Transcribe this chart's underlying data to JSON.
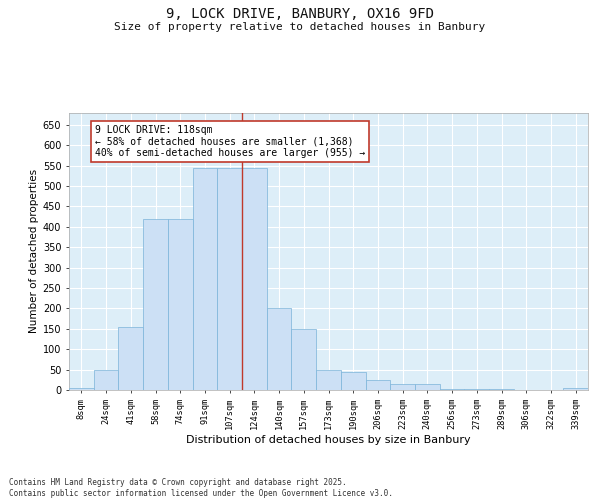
{
  "title_line1": "9, LOCK DRIVE, BANBURY, OX16 9FD",
  "title_line2": "Size of property relative to detached houses in Banbury",
  "xlabel": "Distribution of detached houses by size in Banbury",
  "ylabel": "Number of detached properties",
  "bar_color": "#cce0f5",
  "bar_edge_color": "#7ab3d9",
  "categories": [
    "8sqm",
    "24sqm",
    "41sqm",
    "58sqm",
    "74sqm",
    "91sqm",
    "107sqm",
    "124sqm",
    "140sqm",
    "157sqm",
    "173sqm",
    "190sqm",
    "206sqm",
    "223sqm",
    "240sqm",
    "256sqm",
    "273sqm",
    "289sqm",
    "306sqm",
    "322sqm",
    "339sqm"
  ],
  "values": [
    5,
    50,
    155,
    420,
    420,
    545,
    545,
    545,
    200,
    150,
    50,
    45,
    25,
    15,
    15,
    2,
    2,
    2,
    0,
    0,
    5
  ],
  "ylim": [
    0,
    680
  ],
  "yticks": [
    0,
    50,
    100,
    150,
    200,
    250,
    300,
    350,
    400,
    450,
    500,
    550,
    600,
    650
  ],
  "vline_x_index": 6.5,
  "vline_color": "#c0392b",
  "annotation_text": "9 LOCK DRIVE: 118sqm\n← 58% of detached houses are smaller (1,368)\n40% of semi-detached houses are larger (955) →",
  "annotation_box_facecolor": "#ffffff",
  "annotation_box_edgecolor": "#c0392b",
  "footer": "Contains HM Land Registry data © Crown copyright and database right 2025.\nContains public sector information licensed under the Open Government Licence v3.0.",
  "bg_color": "#ddeef8",
  "grid_color": "#ffffff",
  "fig_bg": "#ffffff"
}
